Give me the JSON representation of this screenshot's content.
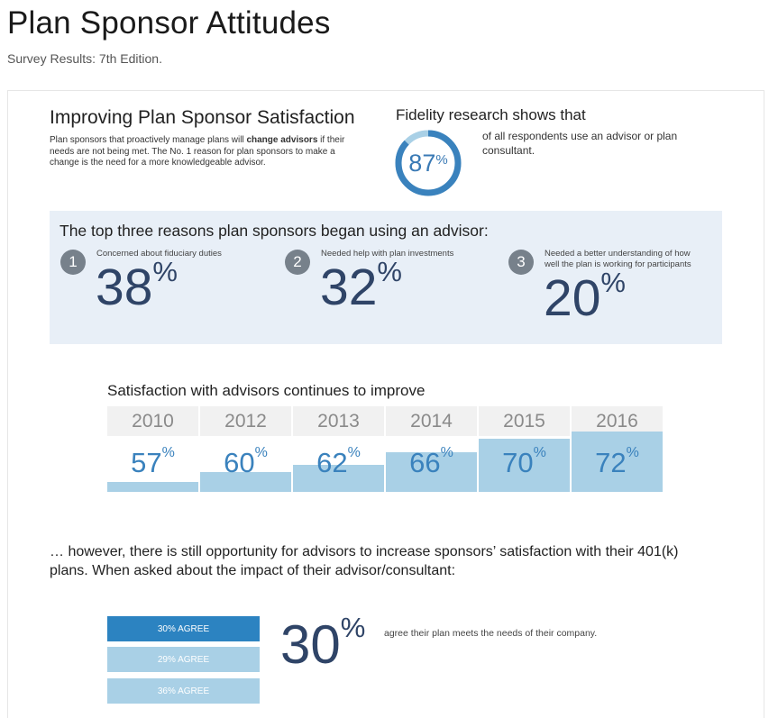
{
  "header": {
    "title": "Plan Sponsor Attitudes",
    "subtitle": "Survey Results: 7th Edition."
  },
  "intro": {
    "heading": "Improving Plan Sponsor Satisfaction",
    "body_before": "Plan sponsors that proactively manage plans will ",
    "body_bold": "change advisors",
    "body_after": " if their needs are not being met. The No. 1 reason for plan sponsors to make a change is the need for a more knowledgeable advisor."
  },
  "fidelity": {
    "heading": "Fidelity research shows that",
    "value": "87",
    "percent_sign": "%",
    "fraction": 0.87,
    "description": "of all respondents use an advisor or plan consultant."
  },
  "reasons": {
    "heading": "The top three reasons plan sponsors began using an advisor:",
    "items": [
      {
        "number": "1",
        "label": "Concerned about fiduciary duties",
        "value": "38",
        "percent_sign": "%"
      },
      {
        "number": "2",
        "label": "Needed help with plan investments",
        "value": "32",
        "percent_sign": "%"
      },
      {
        "number": "3",
        "label": "Needed a better understanding of how well the plan is working for participants",
        "value": "20",
        "percent_sign": "%"
      }
    ]
  },
  "satisfaction": {
    "heading": "Satisfaction with advisors continues to improve",
    "years": [
      {
        "year": "2010",
        "value": "57",
        "percent_sign": "%",
        "level": 57
      },
      {
        "year": "2012",
        "value": "60",
        "percent_sign": "%",
        "level": 60
      },
      {
        "year": "2013",
        "value": "62",
        "percent_sign": "%",
        "level": 62
      },
      {
        "year": "2014",
        "value": "66",
        "percent_sign": "%",
        "level": 66
      },
      {
        "year": "2015",
        "value": "70",
        "percent_sign": "%",
        "level": 70
      },
      {
        "year": "2016",
        "value": "72",
        "percent_sign": "%",
        "level": 72
      }
    ]
  },
  "opportunity": {
    "text": "… however, there is still opportunity for advisors to increase sponsors’ satisfaction with their 401(k) plans. When asked about the impact of their advisor/consultant:"
  },
  "agree": {
    "options": [
      {
        "label": "30% AGREE",
        "active": true
      },
      {
        "label": "29% AGREE",
        "active": false
      },
      {
        "label": "36% AGREE",
        "active": false
      }
    ],
    "value": "30",
    "percent_sign": "%",
    "description": "agree their plan meets the needs of their company."
  },
  "colors": {
    "title_dark": "#2f4467",
    "accent_blue": "#2c83c1",
    "light_blue": "#a9d0e6",
    "reasons_bg": "#e8eff7",
    "donut_track": "#a9d0e6",
    "donut_fill": "#3a82bd"
  }
}
